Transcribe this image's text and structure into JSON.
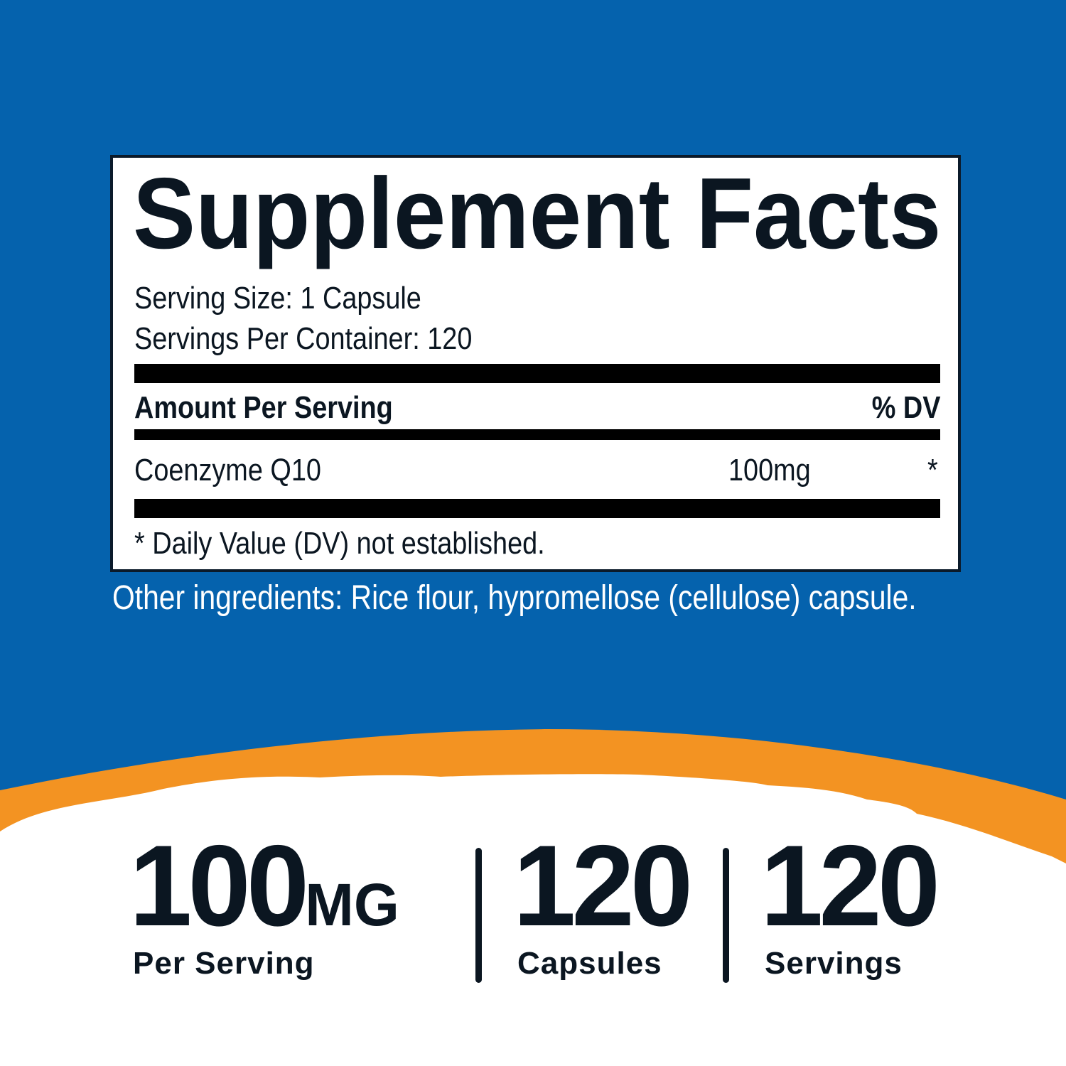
{
  "colors": {
    "background_blue": "#0562ad",
    "accent_orange": "#f39322",
    "text_dark": "#0b1621"
  },
  "label": {
    "title": "Supplement Facts",
    "serving_size": "Serving Size: 1 Capsule",
    "servings_per_container": "Servings Per Container: 120",
    "header_amount": "Amount Per Serving",
    "header_dv": "% DV",
    "ingredients": [
      {
        "name": "Coenzyme Q10",
        "amount": "100mg",
        "dv": "*"
      }
    ],
    "footnote": "* Daily Value (DV) not established."
  },
  "other_ingredients": "Other ingredients: Rice flour, hypromellose (cellulose) capsule.",
  "stats": [
    {
      "value": "100",
      "unit": "MG",
      "label": "Per Serving"
    },
    {
      "value": "120",
      "unit": "",
      "label": "Capsules"
    },
    {
      "value": "120",
      "unit": "",
      "label": "Servings"
    }
  ]
}
